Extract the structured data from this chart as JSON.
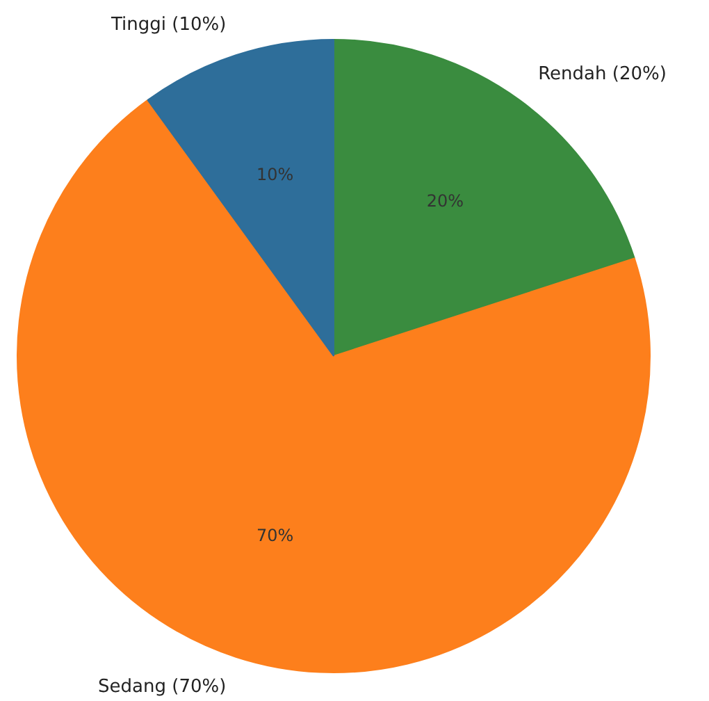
{
  "chart_data": {
    "type": "pie",
    "categories": [
      "Rendah (20%)",
      "Sedang (70%)",
      "Tinggi (10%)"
    ],
    "values": [
      20,
      70,
      10
    ],
    "colors": [
      "#3a8c3f",
      "#fd7f1c",
      "#2e6e9a"
    ],
    "value_labels": [
      "20%",
      "70%",
      "10%"
    ],
    "legend": false
  }
}
